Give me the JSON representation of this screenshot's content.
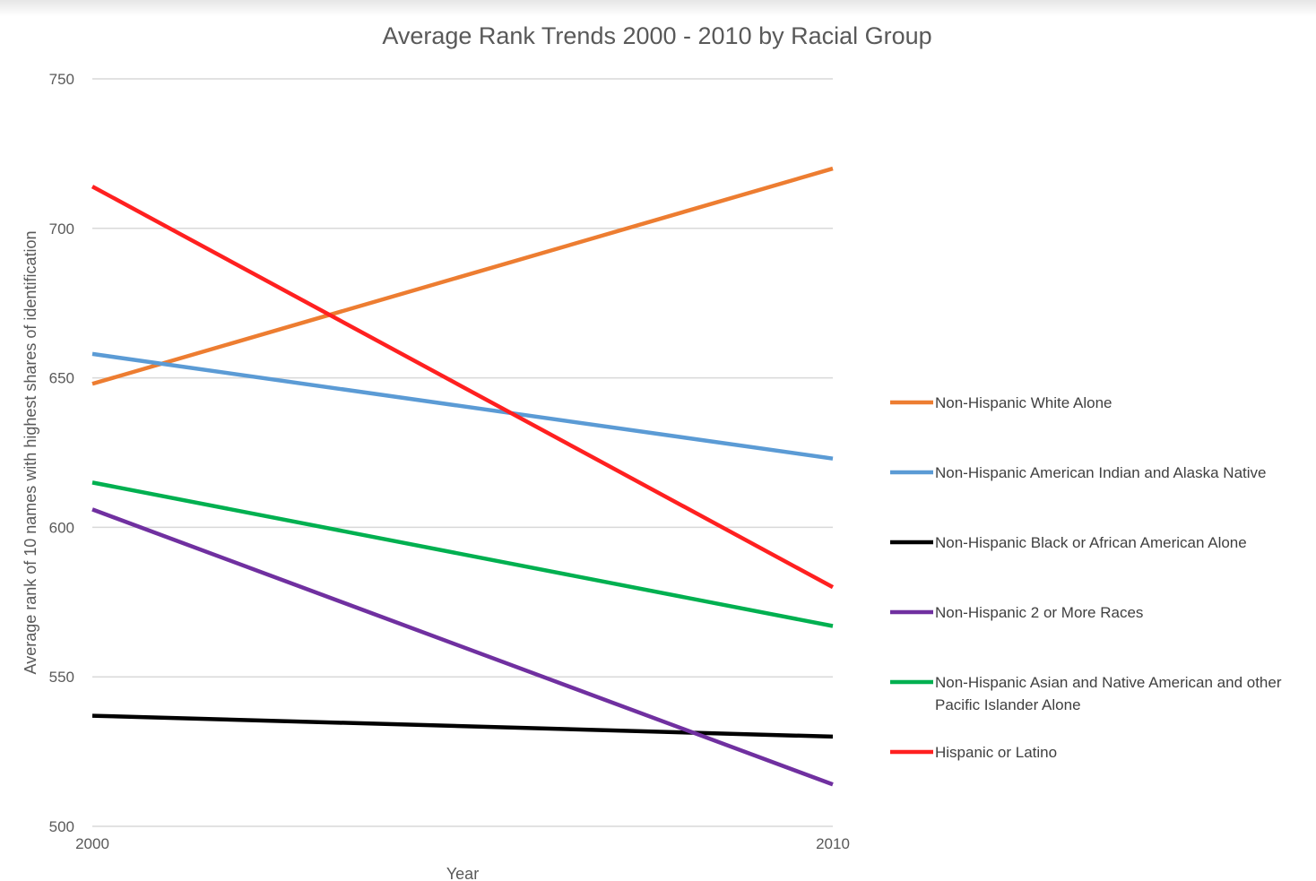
{
  "chart_data": {
    "type": "line",
    "title": "Average Rank Trends 2000 - 2010 by Racial Group",
    "xlabel": "Year",
    "ylabel": "Average rank of 10 names with highest shares of identification",
    "x": [
      2000,
      2010
    ],
    "x_tick_labels": [
      "2000",
      "2010"
    ],
    "ylim": [
      500,
      750
    ],
    "y_ticks": [
      500,
      550,
      600,
      650,
      700,
      750
    ],
    "y_tick_labels": [
      "500",
      "550",
      "600",
      "650",
      "700",
      "750"
    ],
    "grid": "horizontal",
    "legend_position": "right",
    "series": [
      {
        "name": "Non-Hispanic White Alone",
        "color": "#ED7D31",
        "values": [
          648,
          720
        ]
      },
      {
        "name": "Non-Hispanic American Indian and Alaska Native",
        "color": "#5B9BD5",
        "values": [
          658,
          623
        ]
      },
      {
        "name": "Non-Hispanic Black or African American Alone",
        "color": "#000000",
        "values": [
          537,
          530
        ]
      },
      {
        "name": "Non-Hispanic 2 or More Races",
        "color": "#7030A0",
        "values": [
          606,
          514
        ]
      },
      {
        "name_lines": [
          "Non-Hispanic Asian and Native American and other",
          "Pacific Islander Alone"
        ],
        "color": "#00B050",
        "values": [
          615,
          567
        ]
      },
      {
        "name": "Hispanic or Latino",
        "color": "#FF2020",
        "values": [
          714,
          580
        ]
      }
    ]
  }
}
